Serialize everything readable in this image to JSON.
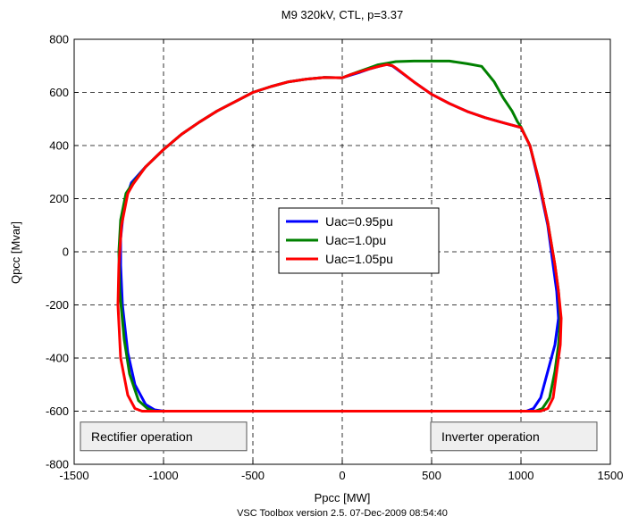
{
  "chart_data": {
    "type": "line",
    "title": "M9 320kV, CTL, p=3.37",
    "xlabel": "Ppcc [MW]",
    "ylabel": "Qpcc [Mvar]",
    "footer": "VSC Toolbox version 2.5. 07-Dec-2009 08:54:40",
    "xlim": [
      -1500,
      1500
    ],
    "ylim": [
      -800,
      800
    ],
    "xticks": [
      -1500,
      -1000,
      -500,
      0,
      500,
      1000,
      1500
    ],
    "yticks": [
      -800,
      -600,
      -400,
      -200,
      0,
      200,
      400,
      600,
      800
    ],
    "grid": true,
    "legend_position": "center",
    "annotations": [
      {
        "text": "Rectifier operation",
        "x": -1000,
        "y": -695
      },
      {
        "text": "Inverter operation",
        "x": 960,
        "y": -695
      }
    ],
    "series": [
      {
        "name": "Uac=0.95pu",
        "color": "#0000ff",
        "points": [
          [
            0,
            655
          ],
          [
            50,
            666
          ],
          [
            100,
            676
          ],
          [
            150,
            688
          ],
          [
            200,
            697
          ],
          [
            230,
            703
          ],
          [
            250,
            705
          ],
          [
            280,
            700
          ],
          [
            300,
            690
          ],
          [
            400,
            640
          ],
          [
            500,
            593
          ],
          [
            600,
            558
          ],
          [
            700,
            528
          ],
          [
            800,
            505
          ],
          [
            900,
            486
          ],
          [
            1000,
            468
          ],
          [
            1050,
            400
          ],
          [
            1100,
            260
          ],
          [
            1150,
            100
          ],
          [
            1180,
            -50
          ],
          [
            1200,
            -150
          ],
          [
            1210,
            -250
          ],
          [
            1190,
            -350
          ],
          [
            1150,
            -450
          ],
          [
            1110,
            -550
          ],
          [
            1070,
            -590
          ],
          [
            1030,
            -600
          ],
          [
            0,
            -600
          ],
          [
            -1000,
            -600
          ],
          [
            -1050,
            -595
          ],
          [
            -1100,
            -575
          ],
          [
            -1160,
            -500
          ],
          [
            -1200,
            -380
          ],
          [
            -1230,
            -200
          ],
          [
            -1240,
            -50
          ],
          [
            -1240,
            50
          ],
          [
            -1220,
            180
          ],
          [
            -1180,
            260
          ],
          [
            -1100,
            320
          ],
          [
            -1000,
            385
          ],
          [
            -900,
            442
          ],
          [
            -800,
            488
          ],
          [
            -700,
            530
          ],
          [
            -600,
            565
          ],
          [
            -500,
            600
          ],
          [
            -400,
            622
          ],
          [
            -300,
            640
          ],
          [
            -200,
            650
          ],
          [
            -100,
            656
          ],
          [
            0,
            655
          ]
        ]
      },
      {
        "name": "Uac=1.0pu",
        "color": "#008000",
        "points": [
          [
            0,
            655
          ],
          [
            50,
            668
          ],
          [
            100,
            680
          ],
          [
            150,
            692
          ],
          [
            200,
            704
          ],
          [
            250,
            710
          ],
          [
            300,
            716
          ],
          [
            400,
            718
          ],
          [
            500,
            718
          ],
          [
            600,
            718
          ],
          [
            700,
            708
          ],
          [
            780,
            698
          ],
          [
            850,
            640
          ],
          [
            900,
            580
          ],
          [
            950,
            530
          ],
          [
            980,
            490
          ],
          [
            1000,
            470
          ],
          [
            1050,
            400
          ],
          [
            1100,
            270
          ],
          [
            1150,
            110
          ],
          [
            1190,
            -50
          ],
          [
            1210,
            -150
          ],
          [
            1220,
            -250
          ],
          [
            1210,
            -350
          ],
          [
            1190,
            -450
          ],
          [
            1160,
            -550
          ],
          [
            1120,
            -590
          ],
          [
            1080,
            -600
          ],
          [
            0,
            -600
          ],
          [
            -1050,
            -600
          ],
          [
            -1090,
            -590
          ],
          [
            -1140,
            -560
          ],
          [
            -1190,
            -460
          ],
          [
            -1220,
            -330
          ],
          [
            -1245,
            -150
          ],
          [
            -1250,
            0
          ],
          [
            -1240,
            120
          ],
          [
            -1210,
            220
          ],
          [
            -1170,
            260
          ],
          [
            -1100,
            320
          ],
          [
            -1000,
            385
          ],
          [
            -900,
            442
          ],
          [
            -800,
            488
          ],
          [
            -700,
            530
          ],
          [
            -600,
            565
          ],
          [
            -500,
            600
          ],
          [
            -400,
            622
          ],
          [
            -300,
            640
          ],
          [
            -200,
            650
          ],
          [
            -100,
            656
          ],
          [
            0,
            655
          ]
        ]
      },
      {
        "name": "Uac=1.05pu",
        "color": "#ff0000",
        "points": [
          [
            0,
            655
          ],
          [
            50,
            668
          ],
          [
            100,
            678
          ],
          [
            150,
            688
          ],
          [
            200,
            697
          ],
          [
            250,
            705
          ],
          [
            280,
            701
          ],
          [
            300,
            692
          ],
          [
            400,
            640
          ],
          [
            500,
            593
          ],
          [
            600,
            558
          ],
          [
            700,
            528
          ],
          [
            800,
            505
          ],
          [
            900,
            486
          ],
          [
            1000,
            468
          ],
          [
            1050,
            400
          ],
          [
            1100,
            270
          ],
          [
            1150,
            110
          ],
          [
            1190,
            -50
          ],
          [
            1210,
            -150
          ],
          [
            1225,
            -250
          ],
          [
            1220,
            -350
          ],
          [
            1200,
            -450
          ],
          [
            1180,
            -550
          ],
          [
            1150,
            -590
          ],
          [
            1110,
            -600
          ],
          [
            0,
            -600
          ],
          [
            -1120,
            -600
          ],
          [
            -1160,
            -590
          ],
          [
            -1200,
            -540
          ],
          [
            -1240,
            -400
          ],
          [
            -1255,
            -200
          ],
          [
            -1250,
            -50
          ],
          [
            -1235,
            100
          ],
          [
            -1200,
            220
          ],
          [
            -1170,
            255
          ],
          [
            -1100,
            320
          ],
          [
            -1000,
            385
          ],
          [
            -900,
            442
          ],
          [
            -800,
            488
          ],
          [
            -700,
            530
          ],
          [
            -600,
            565
          ],
          [
            -500,
            600
          ],
          [
            -400,
            622
          ],
          [
            -300,
            640
          ],
          [
            -200,
            650
          ],
          [
            -100,
            656
          ],
          [
            0,
            655
          ]
        ]
      }
    ]
  }
}
